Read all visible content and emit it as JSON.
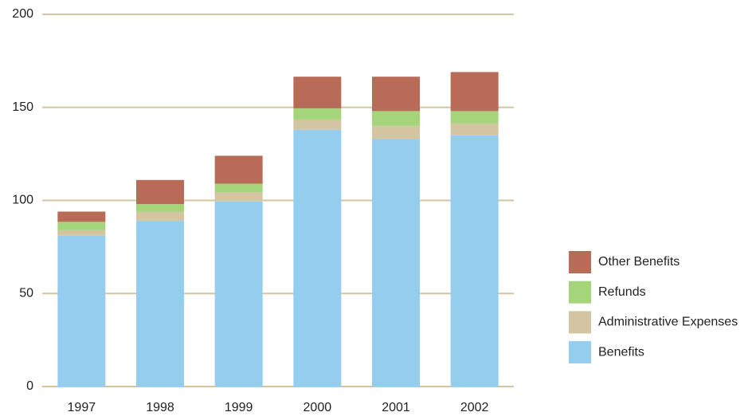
{
  "chart_data": {
    "type": "stacked-bar",
    "categories": [
      "1997",
      "1998",
      "1999",
      "2000",
      "2001",
      "2002"
    ],
    "series": [
      {
        "name": "Benefits",
        "color": "#94cdee",
        "values": [
          81,
          89,
          99.5,
          138,
          133,
          135
        ]
      },
      {
        "name": "Administrative Expenses",
        "color": "#d3c5a1",
        "values": [
          3,
          5,
          5,
          5.5,
          7,
          6.5
        ]
      },
      {
        "name": "Refunds",
        "color": "#a5d57a",
        "values": [
          4.5,
          4,
          4.5,
          6,
          8,
          6.5
        ]
      },
      {
        "name": "Other Benefits",
        "color": "#b86c58",
        "values": [
          5.5,
          13,
          15,
          17,
          18.5,
          21
        ]
      }
    ],
    "ylim": [
      0,
      200
    ],
    "yticks": [
      0,
      50,
      100,
      150,
      200
    ],
    "grid": true,
    "legend": "right"
  }
}
